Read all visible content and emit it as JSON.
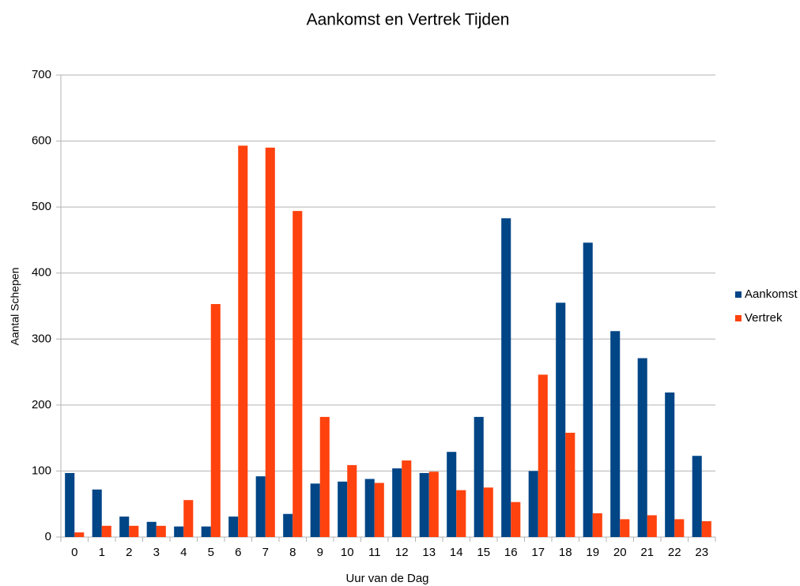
{
  "chart_data": {
    "type": "bar",
    "title": "Aankomst en Vertrek Tijden",
    "xlabel": "Uur van de Dag",
    "ylabel": "Aantal Schepen",
    "categories": [
      "0",
      "1",
      "2",
      "3",
      "4",
      "5",
      "6",
      "7",
      "8",
      "9",
      "10",
      "11",
      "12",
      "13",
      "14",
      "15",
      "16",
      "17",
      "18",
      "19",
      "20",
      "21",
      "22",
      "23"
    ],
    "series": [
      {
        "name": "Aankomst",
        "color": "#004586",
        "values": [
          97,
          72,
          31,
          23,
          16,
          16,
          31,
          92,
          35,
          81,
          84,
          88,
          104,
          97,
          129,
          182,
          483,
          100,
          355,
          446,
          312,
          271,
          219,
          123
        ]
      },
      {
        "name": "Vertrek",
        "color": "#ff420e",
        "values": [
          7,
          17,
          17,
          17,
          56,
          353,
          593,
          590,
          494,
          182,
          109,
          82,
          116,
          99,
          71,
          75,
          53,
          246,
          158,
          36,
          27,
          33,
          27,
          24
        ]
      }
    ],
    "ylim": [
      0,
      700
    ],
    "yticks": [
      0,
      100,
      200,
      300,
      400,
      500,
      600,
      700
    ],
    "grid": true,
    "legend": "right"
  }
}
